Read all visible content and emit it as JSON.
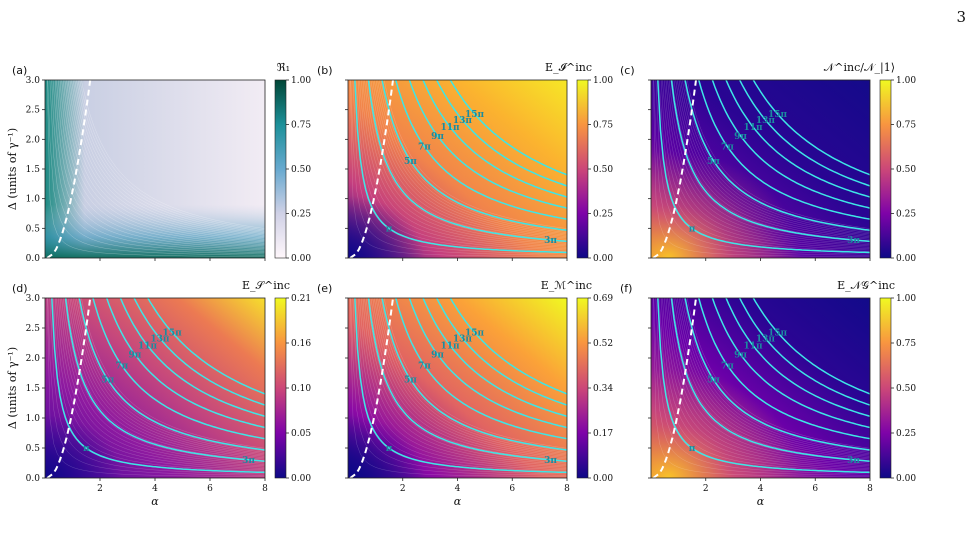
{
  "page_number": "3",
  "chart_data": [
    {
      "type": "heatmap",
      "panel_label": "(a)",
      "title": "ℜ₁",
      "xlabel": "",
      "ylabel": "Δ (units of γ⁻¹)",
      "x_range": [
        0.0,
        8.0
      ],
      "y_range": [
        0.0,
        3.0
      ],
      "x_ticks": [],
      "y_ticks": [
        "0.0",
        "0.5",
        "1.0",
        "1.5",
        "2.0",
        "2.5",
        "3.0"
      ],
      "colorbar": {
        "range": [
          0.0,
          1.0
        ],
        "ticks": [
          "0.00",
          "0.25",
          "0.50",
          "0.75",
          "1.00"
        ],
        "colormap": "PuBuGn"
      },
      "contour_labels": []
    },
    {
      "type": "heatmap",
      "panel_label": "(b)",
      "title": "E_𝓘^inc",
      "xlabel": "",
      "ylabel": "",
      "x_range": [
        0.0,
        8.0
      ],
      "y_range": [
        0.0,
        3.0
      ],
      "x_ticks": [],
      "y_ticks": [],
      "colorbar": {
        "range": [
          0.0,
          1.0
        ],
        "ticks": [
          "0.00",
          "0.25",
          "0.50",
          "0.75",
          "1.00"
        ],
        "colormap": "plasma"
      },
      "contour_labels": [
        "π",
        "3π",
        "5π",
        "7π",
        "9π",
        "11π",
        "13π",
        "15π"
      ]
    },
    {
      "type": "heatmap",
      "panel_label": "(c)",
      "title": "𝒩^inc/𝒩_|1⟩",
      "xlabel": "",
      "ylabel": "",
      "x_range": [
        0.0,
        8.0
      ],
      "y_range": [
        0.0,
        3.0
      ],
      "x_ticks": [],
      "y_ticks": [],
      "colorbar": {
        "range": [
          0.0,
          1.0
        ],
        "ticks": [
          "0.00",
          "0.25",
          "0.50",
          "0.75",
          "1.00"
        ],
        "colormap": "plasma"
      },
      "contour_labels": [
        "π",
        "3π",
        "5π",
        "7π",
        "9π",
        "11π",
        "13π",
        "15π"
      ]
    },
    {
      "type": "heatmap",
      "panel_label": "(d)",
      "title": "E_𝒮^inc",
      "xlabel": "α",
      "ylabel": "Δ (units of γ⁻¹)",
      "x_range": [
        0.0,
        8.0
      ],
      "y_range": [
        0.0,
        3.0
      ],
      "x_ticks": [
        "2",
        "4",
        "6",
        "8"
      ],
      "y_ticks": [
        "0.0",
        "0.5",
        "1.0",
        "1.5",
        "2.0",
        "2.5",
        "3.0"
      ],
      "colorbar": {
        "range": [
          0.0,
          0.21
        ],
        "ticks": [
          "0.00",
          "0.05",
          "0.10",
          "0.16",
          "0.21"
        ],
        "colormap": "plasma"
      },
      "contour_labels": [
        "π",
        "3π",
        "5π",
        "7π",
        "9π",
        "11π",
        "13π",
        "15π"
      ]
    },
    {
      "type": "heatmap",
      "panel_label": "(e)",
      "title": "E_ℳ^inc",
      "xlabel": "α",
      "ylabel": "",
      "x_range": [
        0.0,
        8.0
      ],
      "y_range": [
        0.0,
        3.0
      ],
      "x_ticks": [
        "2",
        "4",
        "6",
        "8"
      ],
      "y_ticks": [],
      "colorbar": {
        "range": [
          0.0,
          0.69
        ],
        "ticks": [
          "0.00",
          "0.17",
          "0.34",
          "0.52",
          "0.69"
        ],
        "colormap": "plasma"
      },
      "contour_labels": [
        "π",
        "3π",
        "5π",
        "7π",
        "9π",
        "11π",
        "13π",
        "15π"
      ]
    },
    {
      "type": "heatmap",
      "panel_label": "(f)",
      "title": "E_𝒩𝒢^inc",
      "xlabel": "α",
      "ylabel": "",
      "x_range": [
        0.0,
        8.0
      ],
      "y_range": [
        0.0,
        3.0
      ],
      "x_ticks": [
        "2",
        "4",
        "6",
        "8"
      ],
      "y_ticks": [],
      "colorbar": {
        "range": [
          0.0,
          1.0
        ],
        "ticks": [
          "0.00",
          "0.25",
          "0.50",
          "0.75",
          "1.00"
        ],
        "colormap": "plasma"
      },
      "contour_labels": [
        "π",
        "3π",
        "5π",
        "7π",
        "9π",
        "11π",
        "13π",
        "15π"
      ]
    }
  ]
}
